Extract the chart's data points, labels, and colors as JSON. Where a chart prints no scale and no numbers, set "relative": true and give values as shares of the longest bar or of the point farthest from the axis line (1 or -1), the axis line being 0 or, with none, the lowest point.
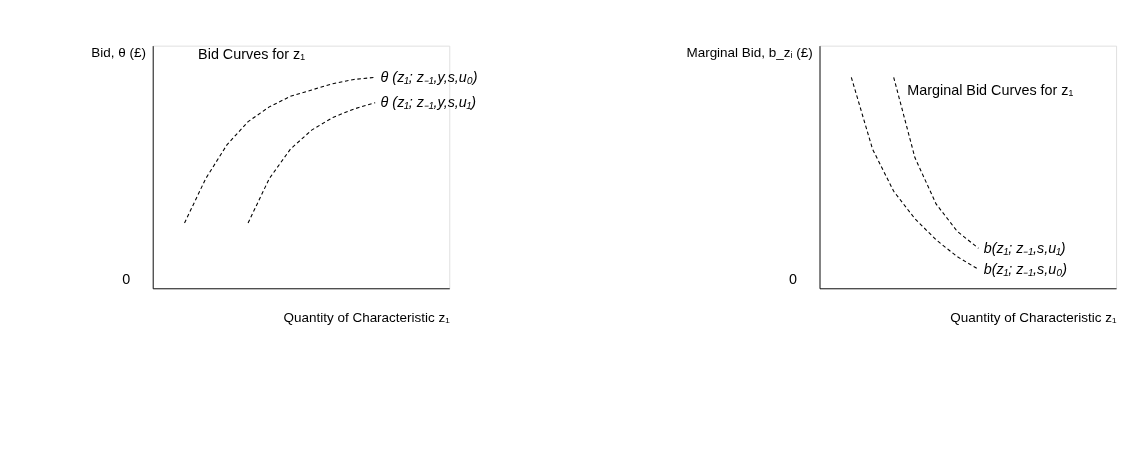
{
  "chart_data": [
    {
      "type": "line",
      "relative": true,
      "line_style": "dashed",
      "marker": "none",
      "grid": false,
      "legend": false,
      "tick_labels": false,
      "ylabel": "Bid, θ (£)",
      "xlabel": "Quantity of Characteristic z₁",
      "categories": [
        null,
        null,
        null,
        null,
        null,
        null,
        null,
        null,
        null,
        null,
        null,
        null,
        null,
        null
      ],
      "annotations": [
        "Bid Curves for z₁",
        "0"
      ],
      "series": [
        {
          "name": "θ (z₁; z₋₁,y,s,u₀)",
          "color": "#000000",
          "values": [
            null,
            0.31,
            0.52,
            0.68,
            0.79,
            0.86,
            0.91,
            0.94,
            0.97,
            0.99,
            1.0,
            null,
            null,
            null
          ]
        },
        {
          "name": "θ (z₁; z₋₁,y,s,u₁)",
          "color": "#000000",
          "values": [
            null,
            null,
            null,
            null,
            0.31,
            0.52,
            0.66,
            0.75,
            0.81,
            0.85,
            0.88,
            null,
            null,
            null
          ]
        }
      ]
    },
    {
      "type": "line",
      "relative": true,
      "line_style": "dashed",
      "marker": "none",
      "grid": false,
      "legend": false,
      "tick_labels": false,
      "ylabel": "Marginal Bid, b_zᵢ (£)",
      "xlabel": "Quantity of Characteristic z₁",
      "categories": [
        null,
        null,
        null,
        null,
        null,
        null,
        null,
        null,
        null,
        null,
        null,
        null,
        null,
        null
      ],
      "annotations": [
        "Marginal Bid Curves for z₁",
        "0"
      ],
      "series": [
        {
          "name": "b(z₁; z₋₁,s,u₁)",
          "color": "#000000",
          "values": [
            null,
            null,
            null,
            1.0,
            0.62,
            0.4,
            0.27,
            0.19,
            null,
            null,
            null,
            null,
            null,
            null
          ]
        },
        {
          "name": "b(z₁; z₋₁,s,u₀)",
          "color": "#000000",
          "values": [
            null,
            1.0,
            0.66,
            0.46,
            0.33,
            0.23,
            0.15,
            0.09,
            null,
            null,
            null,
            null,
            null,
            null
          ]
        }
      ]
    }
  ]
}
